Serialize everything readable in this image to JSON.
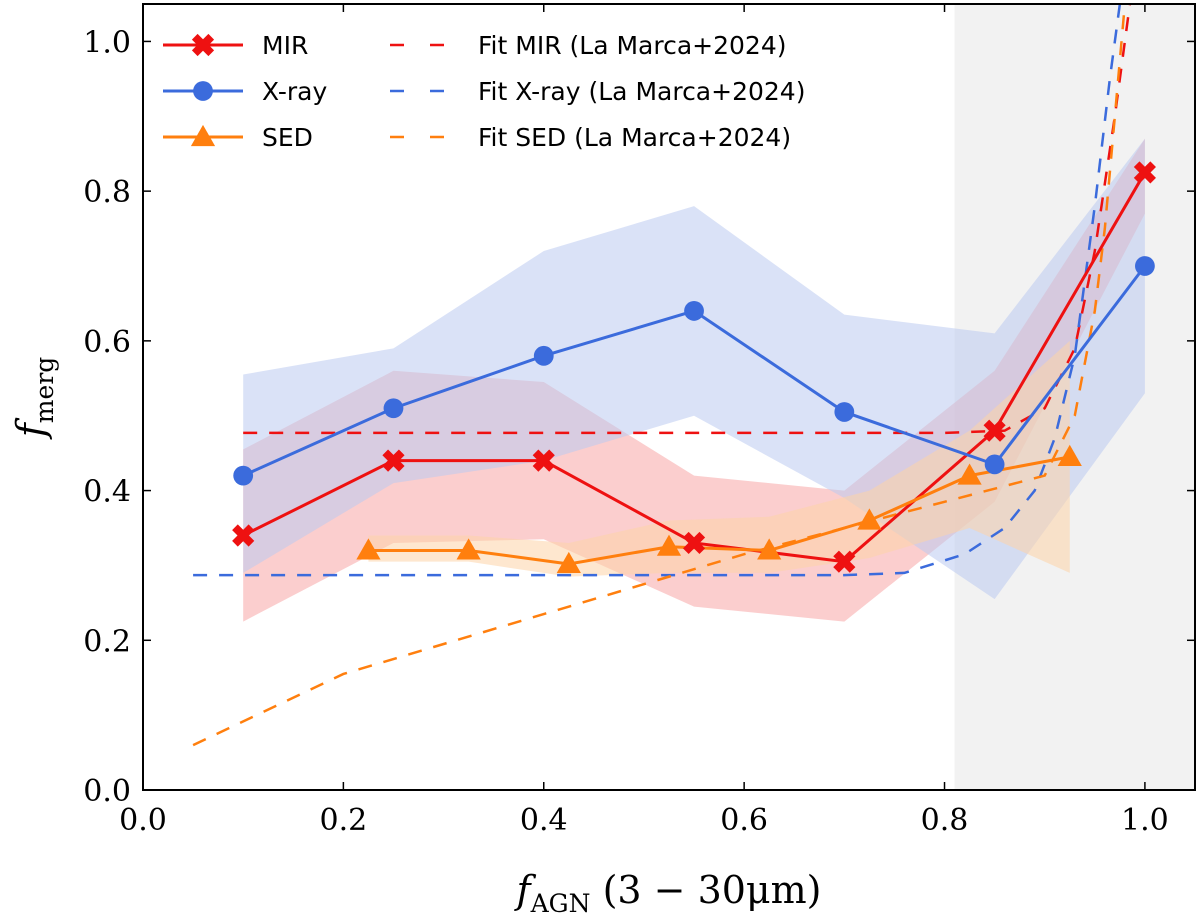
{
  "chart_data": {
    "type": "line",
    "title": "",
    "xlabel": "f_AGN (3 − 30μm)",
    "xlabel_main": "f",
    "xlabel_sub": "AGN",
    "xlabel_rest": " (3 − 30μm)",
    "ylabel": "f_merg",
    "ylabel_main": "f",
    "ylabel_sub": "merg",
    "xlim": [
      0.0,
      1.05
    ],
    "ylim": [
      0.0,
      1.05
    ],
    "xticks": [
      0.0,
      0.2,
      0.4,
      0.6,
      0.8,
      1.0
    ],
    "xtick_labels": [
      "0.0",
      "0.2",
      "0.4",
      "0.6",
      "0.8",
      "1.0"
    ],
    "yticks": [
      0.0,
      0.2,
      0.4,
      0.6,
      0.8,
      1.0
    ],
    "ytick_labels": [
      "0.0",
      "0.2",
      "0.4",
      "0.6",
      "0.8",
      "1.0"
    ],
    "shaded_region": {
      "x_start": 0.81,
      "x_end": 1.05,
      "color": "#f2f2f2"
    },
    "legend_position": "top-left",
    "series": [
      {
        "name": "MIR",
        "color": "#ee1111",
        "marker": "x",
        "x": [
          0.1,
          0.25,
          0.4,
          0.55,
          0.7,
          0.85,
          1.0
        ],
        "y": [
          0.34,
          0.44,
          0.44,
          0.33,
          0.305,
          0.48,
          0.825
        ],
        "y_low": [
          0.225,
          0.33,
          0.335,
          0.245,
          0.225,
          0.385,
          0.77
        ],
        "y_high": [
          0.455,
          0.56,
          0.545,
          0.42,
          0.4,
          0.56,
          0.87
        ],
        "band_color": "#f8a5a5"
      },
      {
        "name": "X-ray",
        "color": "#3b6bdc",
        "marker": "circle",
        "x": [
          0.1,
          0.25,
          0.4,
          0.55,
          0.7,
          0.85,
          1.0
        ],
        "y": [
          0.42,
          0.51,
          0.58,
          0.64,
          0.505,
          0.435,
          0.7
        ],
        "y_low": [
          0.29,
          0.41,
          0.44,
          0.5,
          0.39,
          0.255,
          0.53
        ],
        "y_high": [
          0.555,
          0.59,
          0.72,
          0.78,
          0.635,
          0.61,
          0.87
        ],
        "band_color": "#bccbf0"
      },
      {
        "name": "SED",
        "color": "#ff7f0e",
        "marker": "triangle",
        "x": [
          0.225,
          0.325,
          0.425,
          0.525,
          0.625,
          0.725,
          0.825,
          0.925
        ],
        "y": [
          0.32,
          0.32,
          0.302,
          0.325,
          0.32,
          0.36,
          0.42,
          0.445
        ],
        "y_low": [
          0.305,
          0.305,
          0.285,
          0.29,
          0.29,
          0.31,
          0.35,
          0.29
        ],
        "y_high": [
          0.34,
          0.34,
          0.33,
          0.36,
          0.365,
          0.4,
          0.48,
          0.6
        ],
        "band_color": "#fdd4a8"
      }
    ],
    "fits": [
      {
        "name": "Fit MIR (La Marca+2024)",
        "color": "#ee1111",
        "x": [
          0.1,
          0.8,
          0.86,
          0.9,
          0.93,
          0.95,
          0.97,
          0.985
        ],
        "y": [
          0.477,
          0.477,
          0.48,
          0.51,
          0.59,
          0.72,
          0.9,
          1.05
        ]
      },
      {
        "name": "Fit X-ray (La Marca+2024)",
        "color": "#3b6bdc",
        "x": [
          0.05,
          0.7,
          0.76,
          0.82,
          0.86,
          0.89,
          0.91,
          0.93,
          0.95,
          0.965,
          0.975
        ],
        "y": [
          0.287,
          0.287,
          0.29,
          0.315,
          0.35,
          0.4,
          0.47,
          0.58,
          0.78,
          0.95,
          1.05
        ]
      },
      {
        "name": "Fit SED (La Marca+2024)",
        "color": "#ff7f0e",
        "x": [
          0.05,
          0.2,
          0.4,
          0.6,
          0.8,
          0.9,
          0.93,
          0.95,
          0.96,
          0.97,
          0.98
        ],
        "y": [
          0.06,
          0.155,
          0.235,
          0.315,
          0.385,
          0.42,
          0.5,
          0.64,
          0.75,
          0.9,
          1.05
        ]
      }
    ]
  }
}
